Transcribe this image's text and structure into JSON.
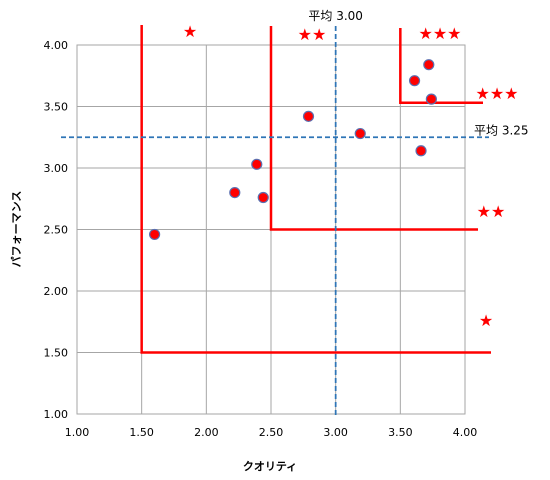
{
  "chart_data": {
    "type": "scatter",
    "xlabel": "クオリティ",
    "ylabel": "パフォーマンス",
    "xlim": [
      1.0,
      4.0
    ],
    "ylim": [
      1.0,
      4.0
    ],
    "x_ticks": [
      "1.00",
      "1.50",
      "2.00",
      "2.50",
      "3.00",
      "3.50",
      "4.00"
    ],
    "y_ticks": [
      "1.00",
      "1.50",
      "2.00",
      "2.50",
      "3.00",
      "3.50",
      "4.00"
    ],
    "grid": true,
    "points": [
      {
        "x": 1.6,
        "y": 2.46
      },
      {
        "x": 2.22,
        "y": 2.8
      },
      {
        "x": 2.39,
        "y": 3.03
      },
      {
        "x": 2.44,
        "y": 2.76
      },
      {
        "x": 2.79,
        "y": 3.42
      },
      {
        "x": 3.19,
        "y": 3.28
      },
      {
        "x": 3.61,
        "y": 3.71
      },
      {
        "x": 3.66,
        "y": 3.14
      },
      {
        "x": 3.72,
        "y": 3.84
      },
      {
        "x": 3.74,
        "y": 3.56
      }
    ],
    "reference_lines": [
      {
        "axis": "x",
        "value": 3.0,
        "label": "平均 3.00"
      },
      {
        "axis": "y",
        "value": 3.25,
        "label": "平均 3.25"
      }
    ],
    "zones": [
      {
        "x_from": 1.5,
        "y_from": 1.5,
        "rank": "★"
      },
      {
        "x_from": 2.5,
        "y_from": 2.5,
        "rank": "★★"
      },
      {
        "x_from": 3.5,
        "y_from": 3.53,
        "rank": "★★★"
      }
    ],
    "colors": {
      "marker_fill": "#ff0000",
      "marker_edge": "#5b6fb0",
      "zone_line": "#ff0000",
      "mean_line": "#2e75b6",
      "grid": "#a6a6a6"
    }
  }
}
